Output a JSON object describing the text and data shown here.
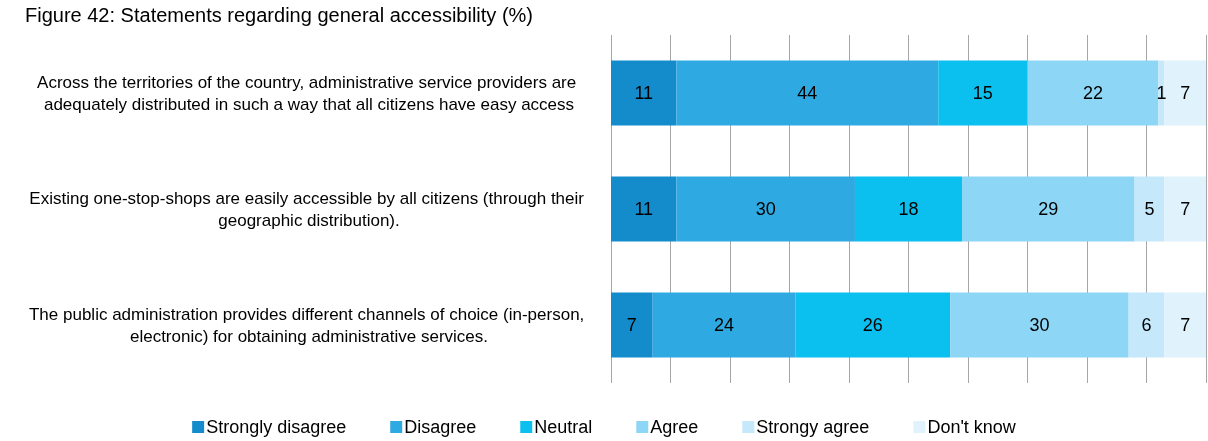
{
  "chart_data": {
    "type": "bar",
    "orientation": "horizontal",
    "stacked": true,
    "title": "Figure 42: Statements regarding general accessibility (%)",
    "categories": [
      "Across the territories of the country, administrative service providers are adequately distributed in such a way that all citizens have easy access",
      "Existing one-stop-shops are easily accessible by all citizens (through their geographic distribution).",
      "The public administration provides different channels of choice (in-person, electronic) for obtaining administrative services."
    ],
    "series": [
      {
        "name": "Strongly disagree",
        "color": "#148ccc",
        "values": [
          11,
          11,
          7
        ]
      },
      {
        "name": "Disagree",
        "color": "#2fa9e1",
        "values": [
          44,
          30,
          24
        ]
      },
      {
        "name": "Neutral",
        "color": "#0bbfee",
        "values": [
          15,
          18,
          26
        ]
      },
      {
        "name": "Agree",
        "color": "#8ed6f5",
        "values": [
          22,
          29,
          30
        ]
      },
      {
        "name": "Strongy agree",
        "color": "#c5e8fa",
        "values": [
          1,
          5,
          6
        ]
      },
      {
        "name": "Don't know",
        "color": "#e0f3fc",
        "values": [
          7,
          7,
          7
        ]
      }
    ],
    "xlim": [
      0,
      100
    ],
    "xticks": [
      {
        "value": 0,
        "label": null
      },
      {
        "value": 10,
        "label": null
      },
      {
        "value": 20,
        "label": null
      },
      {
        "value": 30,
        "label": null
      },
      {
        "value": 40,
        "label": null
      },
      {
        "value": 50,
        "label": null
      },
      {
        "value": 60,
        "label": null
      },
      {
        "value": 70,
        "label": null
      },
      {
        "value": 80,
        "label": null
      },
      {
        "value": 90,
        "label": null
      },
      {
        "value": 100,
        "label": null
      }
    ],
    "tick_labels": "y",
    "grid": "x",
    "data_labels": true,
    "legend": "bottom"
  }
}
